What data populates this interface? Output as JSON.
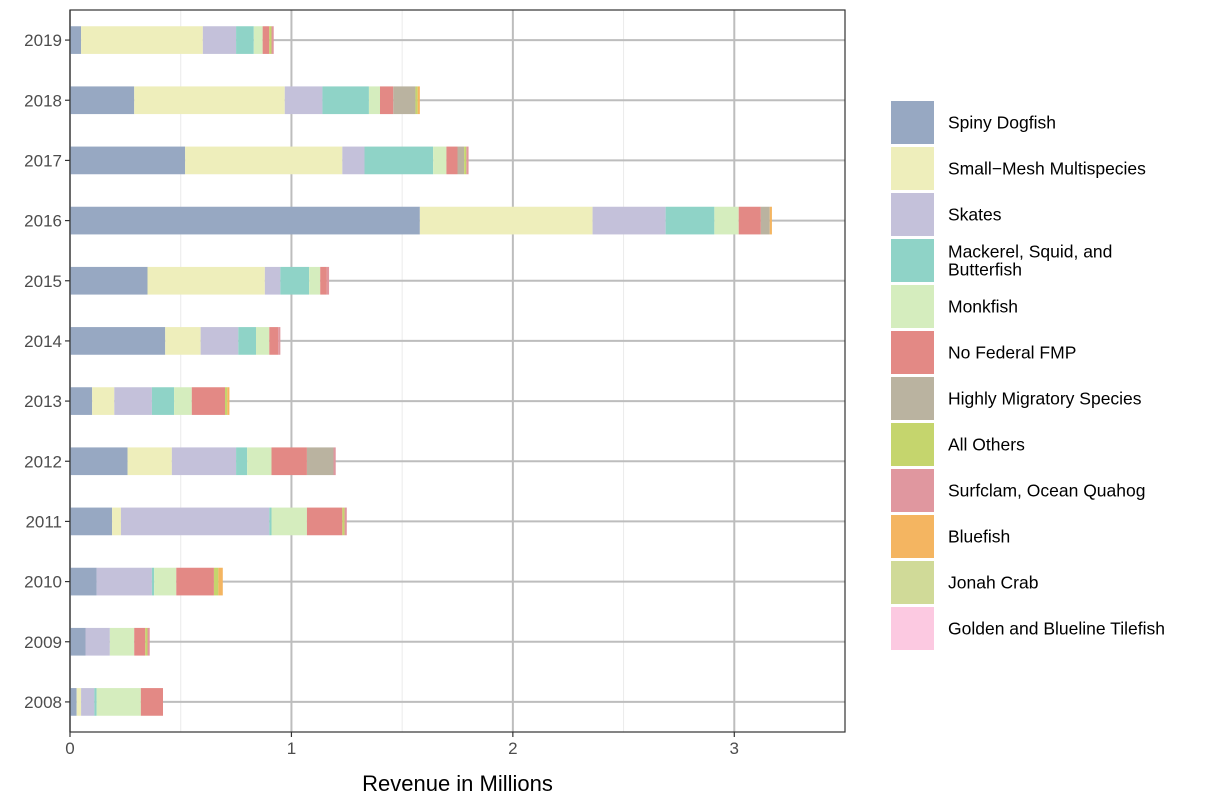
{
  "chart_data": {
    "type": "bar",
    "orientation": "horizontal",
    "stacked": true,
    "xlabel": "Revenue in Millions",
    "ylabel": "",
    "xlim": [
      0,
      3.5
    ],
    "xticks": [
      "0",
      "1",
      "2",
      "3"
    ],
    "categories": [
      "2019",
      "2018",
      "2017",
      "2016",
      "2015",
      "2014",
      "2013",
      "2012",
      "2011",
      "2010",
      "2009",
      "2008"
    ],
    "grid": true,
    "legend_position": "right",
    "series": [
      {
        "name": "Spiny Dogfish",
        "color": "#97a8c2",
        "values": [
          0.05,
          0.29,
          0.52,
          1.58,
          0.35,
          0.43,
          0.1,
          0.26,
          0.19,
          0.12,
          0.07,
          0.03
        ]
      },
      {
        "name": "Small−Mesh Multispecies",
        "color": "#eeeebb",
        "values": [
          0.55,
          0.68,
          0.71,
          0.78,
          0.53,
          0.16,
          0.1,
          0.2,
          0.04,
          0.0,
          0.0,
          0.02
        ]
      },
      {
        "name": "Skates",
        "color": "#c4c1da",
        "values": [
          0.15,
          0.17,
          0.1,
          0.33,
          0.07,
          0.17,
          0.17,
          0.29,
          0.67,
          0.25,
          0.11,
          0.06
        ]
      },
      {
        "name": "Mackerel, Squid, and\nButterfish",
        "color": "#8fd3c7",
        "values": [
          0.08,
          0.21,
          0.31,
          0.22,
          0.13,
          0.08,
          0.1,
          0.05,
          0.01,
          0.01,
          0.0,
          0.01
        ]
      },
      {
        "name": "Monkfish",
        "color": "#d5edbe",
        "values": [
          0.04,
          0.05,
          0.06,
          0.11,
          0.05,
          0.06,
          0.08,
          0.11,
          0.16,
          0.1,
          0.11,
          0.2
        ]
      },
      {
        "name": "No Federal FMP",
        "color": "#e38985",
        "values": [
          0.03,
          0.06,
          0.05,
          0.1,
          0.03,
          0.04,
          0.15,
          0.16,
          0.16,
          0.17,
          0.05,
          0.1
        ]
      },
      {
        "name": "Highly Migratory Species",
        "color": "#bab3a0",
        "values": [
          0.0,
          0.1,
          0.03,
          0.04,
          0.0,
          0.0,
          0.0,
          0.12,
          0.0,
          0.0,
          0.0,
          0.0
        ]
      },
      {
        "name": "All Others",
        "color": "#c5d56d",
        "values": [
          0.01,
          0.01,
          0.01,
          0.0,
          0.0,
          0.0,
          0.01,
          0.0,
          0.01,
          0.02,
          0.01,
          0.0
        ]
      },
      {
        "name": "Surfclam, Ocean Quahog",
        "color": "#e0979f",
        "values": [
          0.01,
          0.0,
          0.01,
          0.0,
          0.01,
          0.01,
          0.0,
          0.01,
          0.01,
          0.0,
          0.01,
          0.0
        ]
      },
      {
        "name": "Bluefish",
        "color": "#f4b561",
        "values": [
          0.0,
          0.01,
          0.0,
          0.01,
          0.0,
          0.0,
          0.01,
          0.0,
          0.0,
          0.02,
          0.0,
          0.0
        ]
      },
      {
        "name": "Jonah Crab",
        "color": "#d0da98",
        "values": [
          0.0,
          0.0,
          0.0,
          0.0,
          0.0,
          0.0,
          0.0,
          0.0,
          0.0,
          0.0,
          0.0,
          0.0
        ]
      },
      {
        "name": "Golden and Blueline Tilefish",
        "color": "#fcc9e1",
        "values": [
          0.0,
          0.0,
          0.0,
          0.0,
          0.0,
          0.0,
          0.0,
          0.0,
          0.0,
          0.0,
          0.0,
          0.0
        ]
      }
    ]
  }
}
